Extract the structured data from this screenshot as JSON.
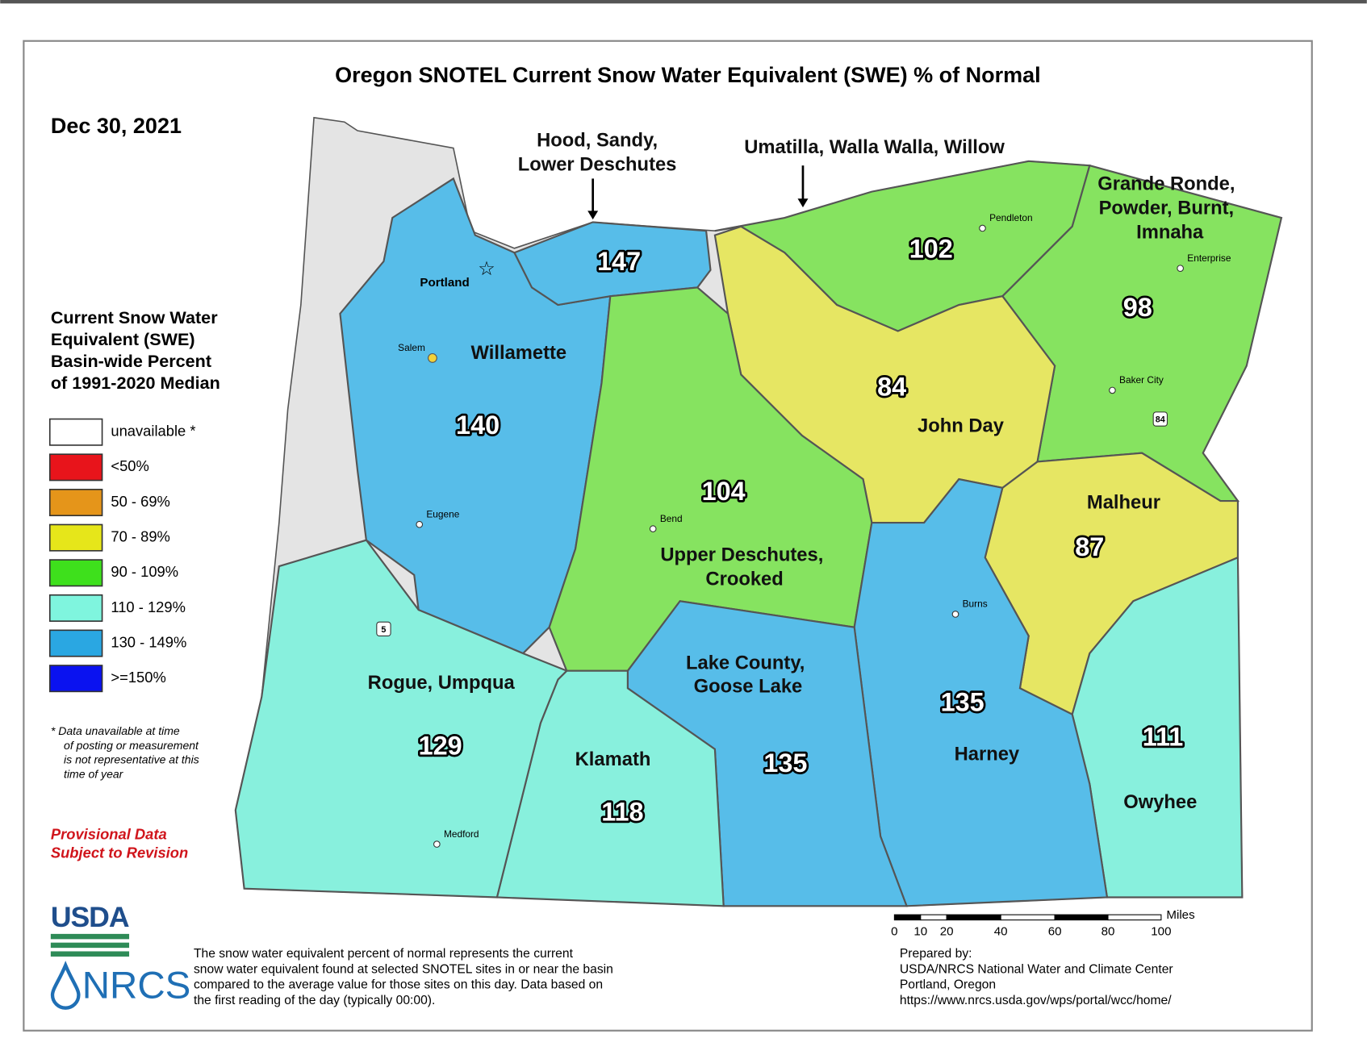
{
  "title": "Oregon SNOTEL Current Snow Water Equivalent (SWE) % of Normal",
  "date": "Dec 30, 2021",
  "legend": {
    "title": [
      "Current Snow Water",
      "Equivalent (SWE)",
      "Basin-wide Percent",
      "of 1991-2020 Median"
    ],
    "items": [
      {
        "label": "unavailable *",
        "color": "#ffffff"
      },
      {
        "label": "<50%",
        "color": "#e8141b"
      },
      {
        "label": "50 - 69%",
        "color": "#e5951a"
      },
      {
        "label": "70 - 89%",
        "color": "#e6e61a"
      },
      {
        "label": "90 - 109%",
        "color": "#3ee01c"
      },
      {
        "label": "110 - 129%",
        "color": "#7ff5de"
      },
      {
        "label": "130 - 149%",
        "color": "#2aa7e2"
      },
      {
        "label": ">=150%",
        "color": "#0a12f0"
      }
    ]
  },
  "footnote": [
    "*  Data unavailable at time",
    "of posting or measurement",
    "is not representative at this",
    "time of year"
  ],
  "provisional": [
    "Provisional Data",
    "Subject to Revision"
  ],
  "basins": [
    {
      "name": [
        "Willamette"
      ],
      "value": 140,
      "color": "#57bde9"
    },
    {
      "name": [
        "Hood, Sandy,",
        "Lower Deschutes"
      ],
      "value": 147,
      "color": "#57bde9"
    },
    {
      "name": [
        "Umatilla, Walla Walla, Willow"
      ],
      "value": 102,
      "color": "#86e360"
    },
    {
      "name": [
        "Grande Ronde,",
        "Powder, Burnt,",
        "Imnaha"
      ],
      "value": 98,
      "color": "#86e360"
    },
    {
      "name": [
        "John Day"
      ],
      "value": 84,
      "color": "#e6e663"
    },
    {
      "name": [
        "Upper Deschutes,",
        "Crooked"
      ],
      "value": 104,
      "color": "#86e360"
    },
    {
      "name": [
        "Malheur"
      ],
      "value": 87,
      "color": "#e6e663"
    },
    {
      "name": [
        "Owyhee"
      ],
      "value": 111,
      "color": "#88f0dd"
    },
    {
      "name": [
        "Harney"
      ],
      "value": 135,
      "color": "#57bde9"
    },
    {
      "name": [
        "Lake County,",
        "Goose Lake"
      ],
      "value": 135,
      "color": "#57bde9"
    },
    {
      "name": [
        "Klamath"
      ],
      "value": 118,
      "color": "#88f0dd"
    },
    {
      "name": [
        "Rogue, Umpqua"
      ],
      "value": 129,
      "color": "#88f0dd"
    }
  ],
  "cities": [
    "Portland",
    "Salem",
    "Eugene",
    "Bend",
    "Medford",
    "Pendleton",
    "Enterprise",
    "Baker City",
    "Burns"
  ],
  "interstates": [
    "5",
    "84"
  ],
  "scale_bar": {
    "labels": [
      "0",
      "10",
      "20",
      "40",
      "60",
      "80",
      "100"
    ],
    "unit": "Miles"
  },
  "logo": {
    "usda": "USDA",
    "nrcs": "NRCS"
  },
  "description": [
    "The snow water equivalent percent of normal represents the current",
    "snow water equivalent found at selected SNOTEL sites in or near the basin",
    "compared to the average value for those sites on this day. Data based on",
    "the first reading of the day (typically 00:00)."
  ],
  "prepared_by": [
    "Prepared by:",
    "USDA/NRCS National Water and Climate Center",
    "Portland, Oregon",
    "https://www.nrcs.usda.gov/wps/portal/wcc/home/"
  ]
}
